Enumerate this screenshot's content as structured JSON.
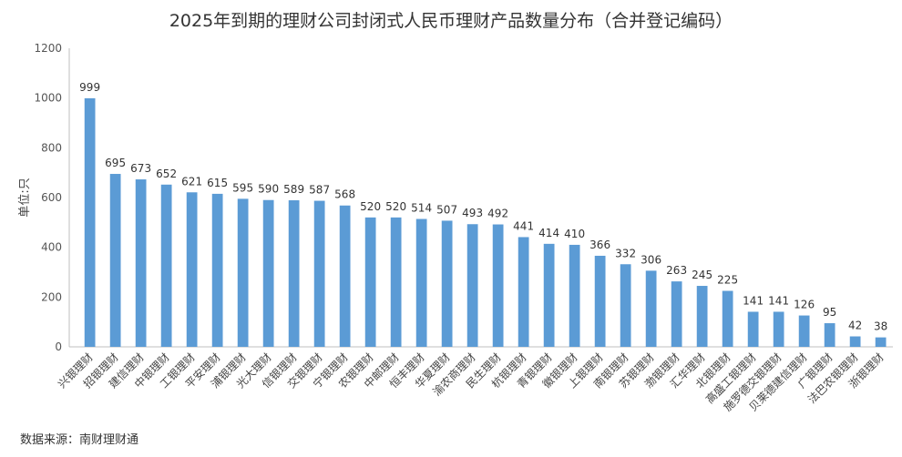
{
  "chart_data": {
    "type": "bar",
    "title": "2025年到期的理财公司封闭式人民币理财产品数量分布（合并登记编码）",
    "ylabel": "单位:只",
    "xlabel": "",
    "ylim": [
      0,
      1200
    ],
    "yticks": [
      "0",
      "200",
      "400",
      "600",
      "800",
      "1000",
      "1200"
    ],
    "grid": false,
    "color": "#5b9bd5",
    "categories": [
      "兴银理财",
      "招银理财",
      "建信理财",
      "中银理财",
      "工银理财",
      "平安理财",
      "浦银理财",
      "光大理财",
      "信银理财",
      "交银理财",
      "宁银理财",
      "农银理财",
      "中邮理财",
      "恒丰理财",
      "华夏理财",
      "渝农商理财",
      "民生理财",
      "杭银理财",
      "青银理财",
      "徽银理财",
      "上银理财",
      "南银理财",
      "苏银理财",
      "渤银理财",
      "汇华理财",
      "北银理财",
      "高盛工银理财",
      "施罗德交银理财",
      "贝莱德建信理财",
      "广银理财",
      "法巴农银理财",
      "浙银理财"
    ],
    "values": [
      999,
      695,
      673,
      652,
      621,
      615,
      595,
      590,
      589,
      587,
      568,
      520,
      520,
      514,
      507,
      493,
      492,
      441,
      414,
      410,
      366,
      332,
      306,
      263,
      245,
      225,
      141,
      141,
      126,
      95,
      42,
      38
    ],
    "source": "数据来源：南财理财通"
  }
}
